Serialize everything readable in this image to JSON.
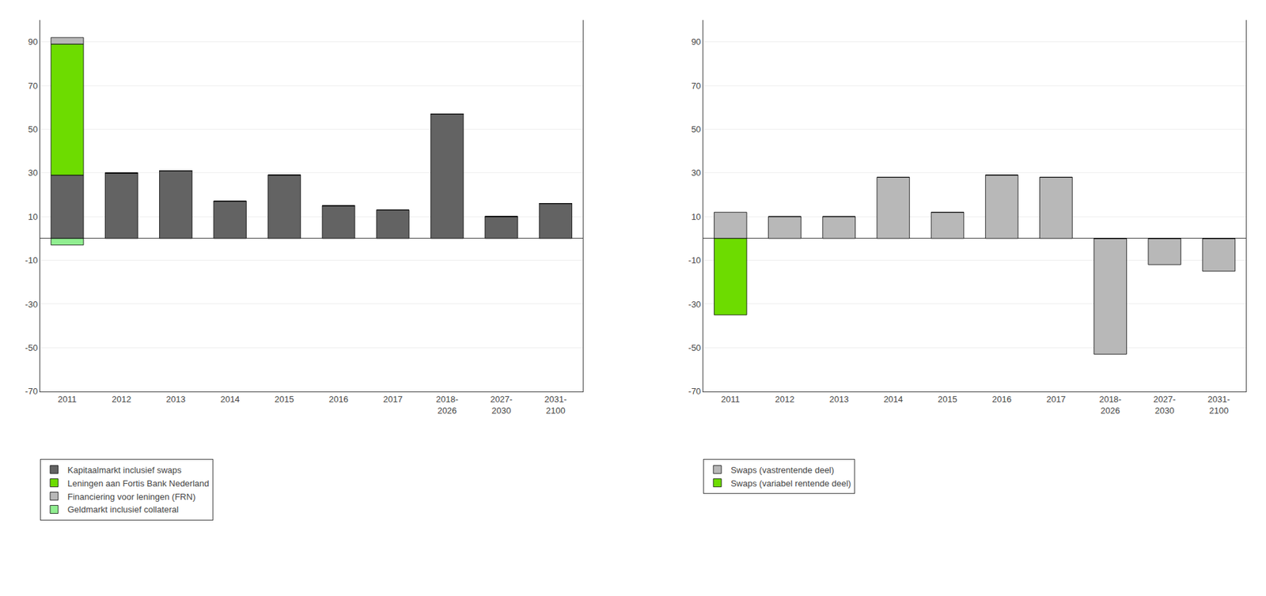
{
  "chart_data": [
    {
      "type": "bar",
      "stacked": true,
      "categories": [
        "2011",
        "2012",
        "2013",
        "2014",
        "2015",
        "2016",
        "2017",
        "2018-\n2026",
        "2027-\n2030",
        "2031-\n2100"
      ],
      "series": [
        {
          "name": "Kapitaalmarkt inclusief swaps",
          "color": "#636363",
          "values": [
            29,
            30,
            31,
            17,
            29,
            15,
            13,
            57,
            10,
            16
          ]
        },
        {
          "name": "Leningen aan Fortis Bank Nederland",
          "color": "#6ddc00",
          "values": [
            60,
            0,
            0,
            0,
            0,
            0,
            0,
            0,
            0,
            0
          ]
        },
        {
          "name": "Financiering voor leningen (FRN)",
          "color": "#b8b8b8",
          "values": [
            3,
            0,
            0,
            0,
            0,
            0,
            0,
            0,
            0,
            0
          ]
        },
        {
          "name": "Geldmarkt inclusief collateral",
          "color": "#90ee90",
          "values": [
            -3,
            0,
            0,
            0,
            0,
            0,
            0,
            0,
            0,
            0
          ]
        }
      ],
      "ylim": [
        -70,
        100
      ],
      "yticks": [
        -70,
        -50,
        -30,
        -10,
        10,
        30,
        50,
        70,
        90
      ],
      "grid": true
    },
    {
      "type": "bar",
      "stacked": true,
      "categories": [
        "2011",
        "2012",
        "2013",
        "2014",
        "2015",
        "2016",
        "2017",
        "2018-\n2026",
        "2027-\n2030",
        "2031-\n2100"
      ],
      "series": [
        {
          "name": "Swaps (vastrentende deel)",
          "color": "#b8b8b8",
          "values": [
            12,
            10,
            10,
            28,
            12,
            29,
            28,
            -53,
            -12,
            -15
          ]
        },
        {
          "name": "Swaps (variabel rentende deel)",
          "color": "#6ddc00",
          "values": [
            -35,
            0,
            0,
            0,
            0,
            0,
            0,
            0,
            0,
            0
          ]
        }
      ],
      "ylim": [
        -70,
        100
      ],
      "yticks": [
        -70,
        -50,
        -30,
        -10,
        10,
        30,
        50,
        70,
        90
      ],
      "grid": true
    }
  ]
}
